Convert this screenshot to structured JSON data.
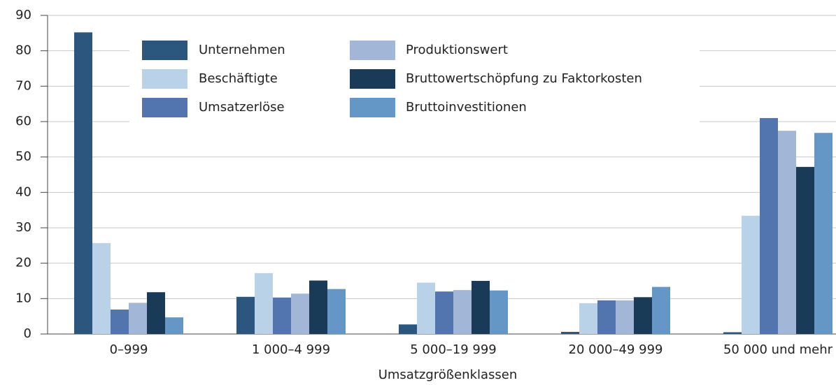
{
  "chart_data": {
    "type": "bar",
    "x_label": "Umsatzgrößenklassen",
    "categories": [
      "0–999",
      "1 000–4 999",
      "5 000–19 999",
      "20 000–49 999",
      "50 000 und mehr"
    ],
    "series": [
      {
        "name": "Unternehmen",
        "color": "#2b577f",
        "values": [
          85.2,
          10.5,
          2.7,
          0.6,
          0.5
        ]
      },
      {
        "name": "Beschäftigte",
        "color": "#b9d2e8",
        "values": [
          25.7,
          17.2,
          14.5,
          8.7,
          33.4
        ]
      },
      {
        "name": "Umsatzerlöse",
        "color": "#5275b0",
        "values": [
          6.9,
          10.3,
          12.0,
          9.5,
          61.0
        ]
      },
      {
        "name": "Produktionswert",
        "color": "#a2b6d8",
        "values": [
          8.8,
          11.4,
          12.4,
          9.5,
          57.4
        ]
      },
      {
        "name": "Bruttowertschöpfung zu Faktorkosten",
        "color": "#1a3b58",
        "values": [
          11.8,
          15.1,
          15.0,
          10.4,
          47.2
        ]
      },
      {
        "name": "Bruttoinvestitionen",
        "color": "#6497c5",
        "values": [
          4.7,
          12.7,
          12.3,
          13.3,
          56.8
        ]
      }
    ],
    "ylim": [
      0,
      90
    ],
    "yticks": [
      0,
      10,
      20,
      30,
      40,
      50,
      60,
      70,
      80,
      90
    ],
    "grid": true
  }
}
